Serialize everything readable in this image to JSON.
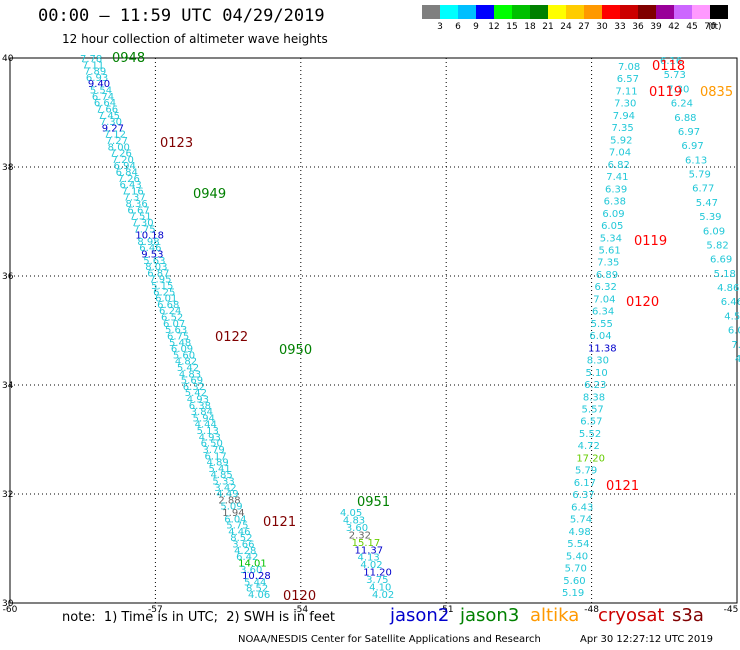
{
  "header": {
    "title": "00:00 – 11:59 UTC 04/29/2019",
    "subtitle": "12 hour collection of altimeter wave heights"
  },
  "scale": {
    "unit": "(ft)",
    "colors": [
      "#7f7f7f",
      "#00ffff",
      "#00bfff",
      "#0000ff",
      "#00ff00",
      "#00c000",
      "#008000",
      "#ffff00",
      "#ffcc00",
      "#ff9900",
      "#ff0000",
      "#cc0000",
      "#800000",
      "#990099",
      "#cc66ff",
      "#ff99ff",
      "#000000"
    ],
    "labels": [
      "3",
      "6",
      "9",
      "12",
      "15",
      "18",
      "21",
      "24",
      "27",
      "30",
      "33",
      "36",
      "39",
      "42",
      "45",
      "70"
    ]
  },
  "axes": {
    "lon_ticks": [
      "-60",
      "-57",
      "-54",
      "-51",
      "-48",
      "-45"
    ],
    "lat_ticks": [
      "40",
      "38",
      "36",
      "34",
      "32",
      "30"
    ]
  },
  "tracks": {
    "t1": [
      "7.78",
      "7.11",
      "7.89",
      "6.93",
      "9.40",
      "5.54",
      "6.74",
      "6.64",
      "7.66",
      "7.45",
      "7.30",
      "9.27",
      "7.12",
      "7.27",
      "8.00",
      "7.26",
      "7.20",
      "6.94",
      "6.84",
      "7.26",
      "6.43",
      "7.16",
      "7.37",
      "8.36",
      "6.67",
      "7.51",
      "7.30",
      "7.75",
      "10.18",
      "8.98",
      "6.46",
      "9.53",
      "5.63",
      "8.03",
      "6.87",
      "7.95",
      "5.15",
      "6.25",
      "6.01",
      "6.68",
      "6.24",
      "6.52",
      "6.07",
      "5.63",
      "6.75",
      "5.48",
      "6.09",
      "5.60",
      "4.82",
      "5.42",
      "4.83",
      "5.69",
      "6.32",
      "5.42",
      "4.93",
      "6.38",
      "3.84",
      "5.94",
      "4.44",
      "5.13",
      "4.93",
      "6.50",
      "3.79",
      "6.17",
      "4.89",
      "5.41",
      "4.85",
      "5.33",
      "3.42",
      "4.49",
      "2.88",
      "5.09",
      "1.94",
      "6.04",
      "5.75",
      "4.46",
      "8.52",
      "3.66",
      "4.28",
      "6.42",
      "14.01",
      "3.60",
      "10.28",
      "5.44",
      "8.52",
      "4.06"
    ],
    "t3": [
      "4.05",
      "4.83",
      "3.60",
      "2.32",
      "15.17",
      "11.37",
      "4.13",
      "4.02",
      "11.20",
      "3.75",
      "4.10",
      "4.02"
    ],
    "t_east": [
      "7.08",
      "6.57",
      "7.11",
      "7.30",
      "7.94",
      "7.35",
      "5.92",
      "7.04",
      "6.82",
      "7.41",
      "6.39",
      "6.38",
      "6.09",
      "6.05",
      "5.34",
      "5.61",
      "7.35",
      "6.89",
      "6.32",
      "7.04",
      "6.34",
      "5.55",
      "6.04",
      "11.38",
      "8.30",
      "5.10",
      "6.23",
      "8.38",
      "5.57",
      "6.57",
      "5.52",
      "4.72",
      "17.20",
      "5.79",
      "6.17",
      "6.37",
      "6.43",
      "5.74",
      "4.98",
      "5.54",
      "5.40",
      "5.70",
      "5.60",
      "5.19"
    ],
    "t_ne": [
      "6.16",
      "5.73",
      "7.30",
      "6.24",
      "6.88",
      "6.97",
      "6.97",
      "6.13",
      "5.79",
      "6.77",
      "5.47",
      "5.39",
      "6.09",
      "5.82",
      "6.69",
      "5.18",
      "4.86",
      "6.46",
      "4.5",
      "6.0",
      "7.",
      "4."
    ],
    "passes": [
      {
        "label": "0948",
        "color": "#008000"
      },
      {
        "label": "0123",
        "color": "#800000"
      },
      {
        "label": "0949",
        "color": "#008000"
      },
      {
        "label": "0122",
        "color": "#800000"
      },
      {
        "label": "0950",
        "color": "#008000"
      },
      {
        "label": "0951",
        "color": "#008000"
      },
      {
        "label": "0121",
        "color": "#800000"
      },
      {
        "label": "0120",
        "color": "#800000"
      },
      {
        "label": "0118",
        "color": "#ff0000"
      },
      {
        "label": "0119",
        "color": "#ff0000"
      },
      {
        "label": "0835",
        "color": "#ff9900"
      },
      {
        "label": "0119",
        "color": "#ff0000"
      },
      {
        "label": "0120",
        "color": "#ff0000"
      },
      {
        "label": "0121",
        "color": "#ff0000"
      }
    ]
  },
  "footer": {
    "note": "note:  1) Time is in UTC;  2) SWH is in feet",
    "satellites": [
      {
        "name": "jason2",
        "color": "#0000cc"
      },
      {
        "name": "jason3",
        "color": "#008000"
      },
      {
        "name": "altika",
        "color": "#ff9900"
      },
      {
        "name": "cryosat",
        "color": "#cc0000"
      },
      {
        "name": "s3a",
        "color": "#800000"
      }
    ],
    "credit": "NOAA/NESDIS Center for Satellite Applications and Research",
    "timestamp": "Apr 30 12:27:12 UTC 2019"
  }
}
